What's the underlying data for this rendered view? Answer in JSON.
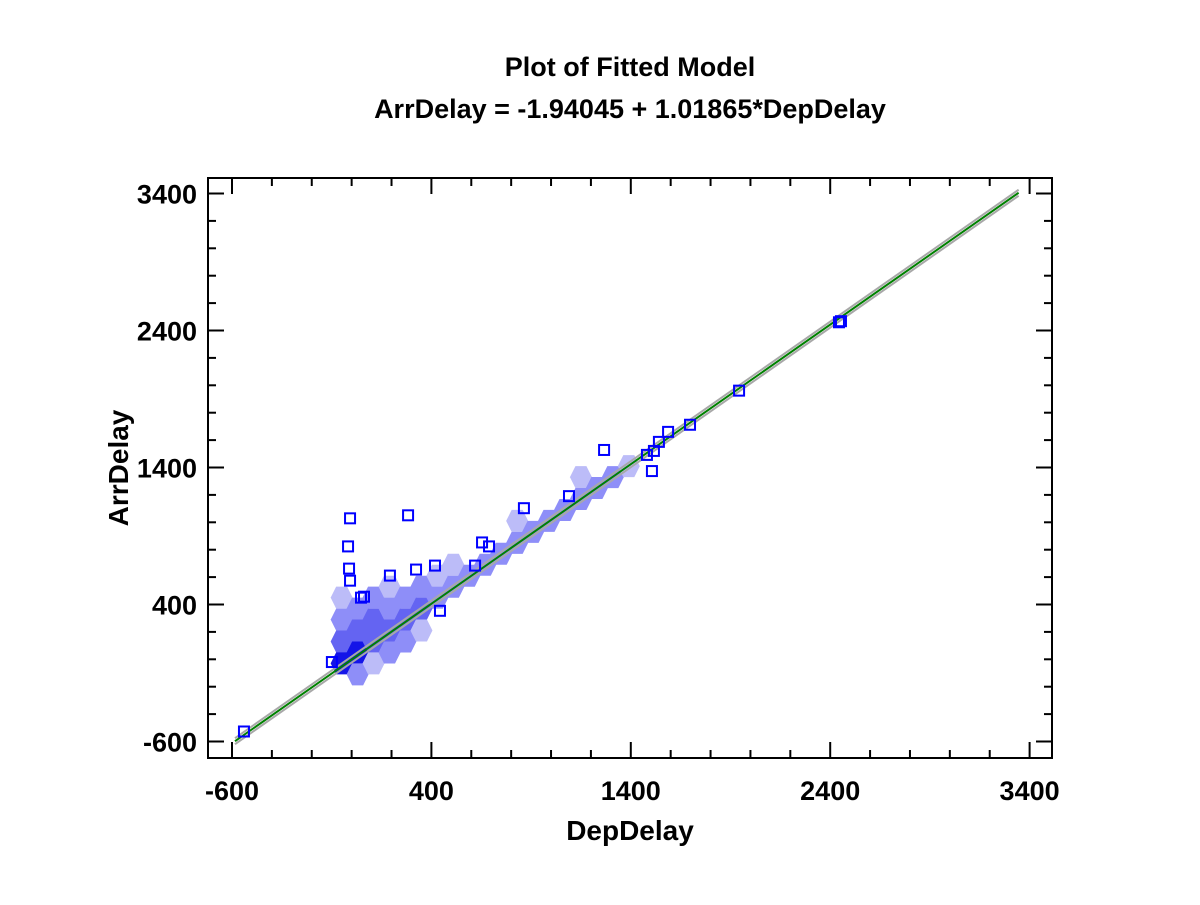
{
  "chart_data": {
    "type": "scatter",
    "title": "Plot of Fitted Model",
    "subtitle": "ArrDelay = -1.94045 + 1.01865*DepDelay",
    "xlabel": "DepDelay",
    "ylabel": "ArrDelay",
    "xlim": [
      -600,
      3400
    ],
    "ylim": [
      -600,
      3400
    ],
    "xticks": [
      "-600",
      "400",
      "1400",
      "2400",
      "3400"
    ],
    "yticks": [
      "-600",
      "400",
      "1400",
      "2400",
      "3400"
    ],
    "xtick_values": [
      -600,
      400,
      1400,
      2400,
      3400
    ],
    "ytick_values": [
      -600,
      400,
      1400,
      2400,
      3400
    ],
    "minor_tick_step": 200,
    "grid": false,
    "fit": {
      "intercept": -1.94045,
      "slope": 1.01865,
      "x_range": [
        -585,
        3345
      ],
      "line_color": "#008000",
      "band_color": "#a8a8a8"
    },
    "hexbin": {
      "level_colors": [
        "#bcbcf8",
        "#8e8ef8",
        "#6464f2",
        "#1414e8"
      ],
      "cells": [
        [
          -50,
          450,
          1
        ],
        [
          -50,
          290,
          2
        ],
        [
          -50,
          130,
          3
        ],
        [
          -50,
          -30,
          4
        ],
        [
          30,
          370,
          2
        ],
        [
          30,
          210,
          3
        ],
        [
          30,
          50,
          4
        ],
        [
          30,
          -110,
          2
        ],
        [
          110,
          450,
          2
        ],
        [
          110,
          290,
          3
        ],
        [
          110,
          130,
          3
        ],
        [
          110,
          -30,
          1
        ],
        [
          190,
          530,
          1
        ],
        [
          190,
          370,
          2
        ],
        [
          190,
          210,
          3
        ],
        [
          190,
          50,
          2
        ],
        [
          270,
          450,
          2
        ],
        [
          270,
          290,
          3
        ],
        [
          270,
          130,
          2
        ],
        [
          350,
          530,
          2
        ],
        [
          350,
          370,
          3
        ],
        [
          350,
          210,
          1
        ],
        [
          430,
          610,
          1
        ],
        [
          430,
          450,
          2
        ],
        [
          510,
          690,
          1
        ],
        [
          510,
          530,
          2
        ],
        [
          590,
          610,
          2
        ],
        [
          670,
          690,
          2
        ],
        [
          750,
          770,
          2
        ],
        [
          830,
          1010,
          1
        ],
        [
          830,
          850,
          2
        ],
        [
          910,
          930,
          2
        ],
        [
          990,
          1010,
          2
        ],
        [
          1070,
          1090,
          2
        ],
        [
          1150,
          1330,
          1
        ],
        [
          1150,
          1170,
          2
        ],
        [
          1230,
          1250,
          2
        ],
        [
          1310,
          1330,
          2
        ],
        [
          1390,
          1410,
          1
        ]
      ]
    },
    "outliers": {
      "color": "#0000ff",
      "points": [
        [
          -540,
          -527
        ],
        [
          -99,
          -20
        ],
        [
          -8,
          1029
        ],
        [
          -18,
          824
        ],
        [
          -13,
          662
        ],
        [
          -8,
          574
        ],
        [
          47,
          450
        ],
        [
          62,
          457
        ],
        [
          192,
          611
        ],
        [
          283,
          1051
        ],
        [
          323,
          655
        ],
        [
          418,
          684
        ],
        [
          443,
          354
        ],
        [
          619,
          684
        ],
        [
          654,
          853
        ],
        [
          689,
          824
        ],
        [
          864,
          1103
        ],
        [
          1090,
          1191
        ],
        [
          1266,
          1528
        ],
        [
          1481,
          1492
        ],
        [
          1506,
          1374
        ],
        [
          1516,
          1521
        ],
        [
          1541,
          1587
        ],
        [
          1587,
          1660
        ],
        [
          1697,
          1712
        ],
        [
          1943,
          1961
        ],
        [
          2454,
          2468
        ],
        [
          2444,
          2460
        ]
      ]
    }
  }
}
